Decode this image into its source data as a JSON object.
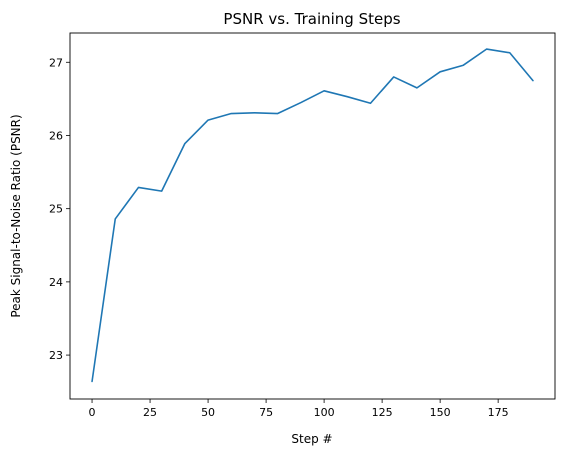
{
  "chart_data": {
    "type": "line",
    "title": "PSNR vs. Training Steps",
    "xlabel": "Step #",
    "ylabel": "Peak Signal-to-Noise Ratio (PSNR)",
    "xlim": [
      -9.5,
      199.5
    ],
    "ylim": [
      22.4,
      27.4
    ],
    "xticks": [
      0,
      25,
      50,
      75,
      100,
      125,
      150,
      175
    ],
    "yticks": [
      23,
      24,
      25,
      26,
      27
    ],
    "grid": false,
    "legend": "none",
    "series": [
      {
        "color": "#1f77b4",
        "x": [
          0,
          10,
          20,
          30,
          40,
          50,
          60,
          70,
          80,
          90,
          100,
          110,
          120,
          130,
          140,
          150,
          160,
          170,
          180,
          190
        ],
        "y": [
          22.64,
          24.86,
          25.29,
          25.24,
          25.89,
          26.21,
          26.3,
          26.31,
          26.3,
          26.45,
          26.61,
          26.53,
          26.44,
          26.8,
          26.65,
          26.87,
          26.96,
          27.18,
          27.13,
          26.75
        ]
      }
    ]
  }
}
